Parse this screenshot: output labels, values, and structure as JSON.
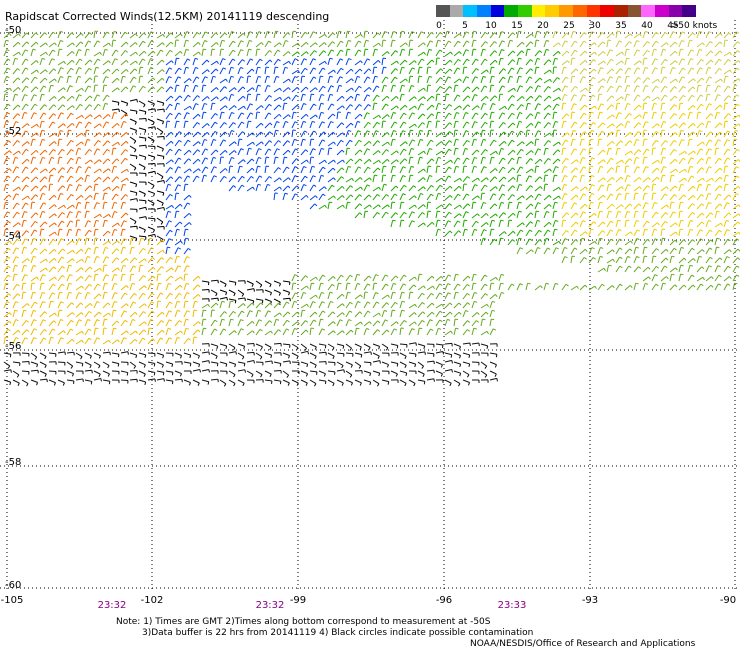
{
  "title": "Rapidscat Corrected Winds(12.5KM) 20141119 descending",
  "scale": {
    "colors": [
      "#555555",
      "#aaaaaa",
      "#00bfff",
      "#0080ff",
      "#0000dd",
      "#00aa00",
      "#33cc00",
      "#ffee00",
      "#ffcc00",
      "#ff9900",
      "#ff6600",
      "#ff3300",
      "#ee0000",
      "#aa2200",
      "#885533",
      "#ff66ff",
      "#cc00cc",
      "#8800aa",
      "#440088"
    ],
    "labels": [
      "0",
      "5",
      "10",
      "15",
      "20",
      "25",
      "30",
      "35",
      "40",
      "45",
      ">50 knots"
    ]
  },
  "axes": {
    "lat_labels": [
      "-50",
      "-52",
      "-54",
      "-56",
      "-58",
      "-60"
    ],
    "lon_labels": [
      "-105",
      "-102",
      "-99",
      "-96",
      "-93",
      "-90"
    ],
    "times": [
      "23:32",
      "23:32",
      "23:33"
    ]
  },
  "notes": {
    "line1": "Note:  1) Times are GMT  2)Times along bottom correspond to measurement at -50S",
    "line2": "3)Data buffer is 22 hrs from 20141119  4) Black circles indicate possible contamination",
    "credit": "NOAA/NESDIS/Office of Research and Applications"
  }
}
